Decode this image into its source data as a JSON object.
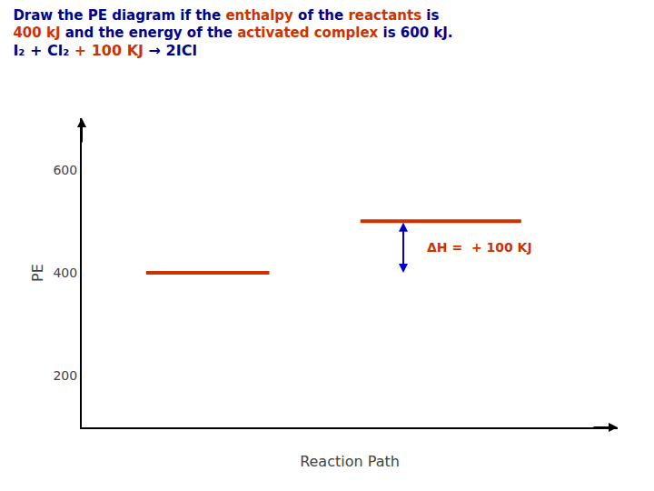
{
  "chart_data": {
    "type": "line",
    "title": [
      [
        {
          "text": "Draw the PE diagram if the ",
          "color": "#00008B"
        },
        {
          "text": "enthalpy",
          "color": "#cc3300"
        },
        {
          "text": " of the ",
          "color": "#00008B"
        },
        {
          "text": "reactants",
          "color": "#cc3300"
        },
        {
          "text": " is",
          "color": "#00008B"
        }
      ],
      [
        {
          "text": "400 kJ",
          "color": "#cc3300"
        },
        {
          "text": " and the energy of the ",
          "color": "#00008B"
        },
        {
          "text": "activated complex",
          "color": "#cc3300"
        },
        {
          "text": " is 600 kJ.",
          "color": "#00008B"
        }
      ]
    ],
    "subtitle": [
      {
        "text": "I₂ + Cl₂ ",
        "color": "#00008B"
      },
      {
        "text": "+ 100 KJ",
        "color": "#cc3300"
      },
      {
        "text": " → 2ICl",
        "color": "#00008B"
      }
    ],
    "x_label": "Reaction Path",
    "y_label": "PE",
    "series": [
      {
        "x": [
          1.2,
          3.5
        ],
        "values": [
          400,
          400
        ],
        "color": "#cc3300"
      },
      {
        "x": [
          5.2,
          8.2
        ],
        "values": [
          500,
          500
        ],
        "color": "#cc3300"
      }
    ],
    "annotations": [
      {
        "type": "double_arrow",
        "x": 6.0,
        "y": [
          400,
          500
        ],
        "color": "#0000cc"
      },
      {
        "type": "text",
        "text": "ΔH =  + 100 KJ",
        "x": 6.4,
        "y": 450,
        "color": "#cc3300"
      }
    ],
    "xlim": [
      0,
      10
    ],
    "ylim": [
      100,
      700
    ],
    "yticks": [
      200,
      400,
      600
    ],
    "grid": false,
    "tick_labels": "y"
  }
}
